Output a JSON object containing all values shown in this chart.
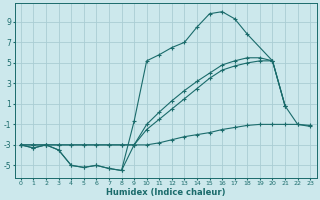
{
  "background_color": "#cce8ec",
  "grid_color": "#aacdd4",
  "line_color": "#1a6b6b",
  "xlabel": "Humidex (Indice chaleur)",
  "xlim": [
    -0.5,
    23.5
  ],
  "ylim": [
    -6.2,
    10.8
  ],
  "yticks": [
    -5,
    -3,
    -1,
    1,
    3,
    5,
    7,
    9
  ],
  "xticks": [
    0,
    1,
    2,
    3,
    4,
    5,
    6,
    7,
    8,
    9,
    10,
    11,
    12,
    13,
    14,
    15,
    16,
    17,
    18,
    19,
    20,
    21,
    22,
    23
  ],
  "curve_zigzag_x": [
    0,
    1,
    2,
    3,
    4,
    5,
    6,
    7,
    8,
    9,
    10,
    11,
    12,
    13,
    14,
    15,
    16,
    17,
    18,
    19,
    20,
    21,
    22,
    23
  ],
  "curve_zigzag_y": [
    -3.0,
    -3.3,
    -3.0,
    -3.5,
    -5.0,
    -5.2,
    -5.0,
    -5.3,
    -5.5,
    -3.0,
    -3.0,
    -2.8,
    -2.5,
    -2.2,
    -2.0,
    -1.8,
    -1.5,
    -1.3,
    -1.1,
    -1.0,
    -1.0,
    -1.0,
    -1.0,
    -1.1
  ],
  "curve_linear1_x": [
    0,
    1,
    2,
    3,
    4,
    5,
    6,
    7,
    8,
    9,
    10,
    11,
    12,
    13,
    14,
    15,
    16,
    17,
    18,
    19,
    20,
    21
  ],
  "curve_linear1_y": [
    -3.0,
    -3.0,
    -3.0,
    -3.0,
    -3.0,
    -3.0,
    -3.0,
    -3.0,
    -3.0,
    -3.0,
    -1.5,
    -0.5,
    0.5,
    1.5,
    2.5,
    3.5,
    4.3,
    4.7,
    5.0,
    5.2,
    5.2,
    0.8
  ],
  "curve_linear2_x": [
    0,
    1,
    2,
    3,
    4,
    5,
    6,
    7,
    8,
    9,
    10,
    11,
    12,
    13,
    14,
    15,
    16,
    17,
    18,
    19,
    20,
    21
  ],
  "curve_linear2_y": [
    -3.0,
    -3.0,
    -3.0,
    -3.0,
    -3.0,
    -3.0,
    -3.0,
    -3.0,
    -3.0,
    -3.0,
    -1.0,
    0.2,
    1.3,
    2.3,
    3.2,
    4.0,
    4.8,
    5.2,
    5.5,
    5.5,
    5.2,
    0.8
  ],
  "curve_peak_x": [
    0,
    1,
    2,
    3,
    4,
    5,
    6,
    7,
    8,
    9,
    10,
    11,
    12,
    13,
    14,
    15,
    16,
    17,
    18,
    20,
    21,
    22,
    23
  ],
  "curve_peak_y": [
    -3.0,
    -3.3,
    -3.0,
    -3.5,
    -5.0,
    -5.2,
    -5.0,
    -5.3,
    -5.5,
    -0.7,
    5.2,
    5.8,
    6.5,
    7.0,
    8.5,
    9.8,
    10.0,
    9.3,
    7.8,
    5.2,
    0.8,
    -1.0,
    -1.2
  ]
}
